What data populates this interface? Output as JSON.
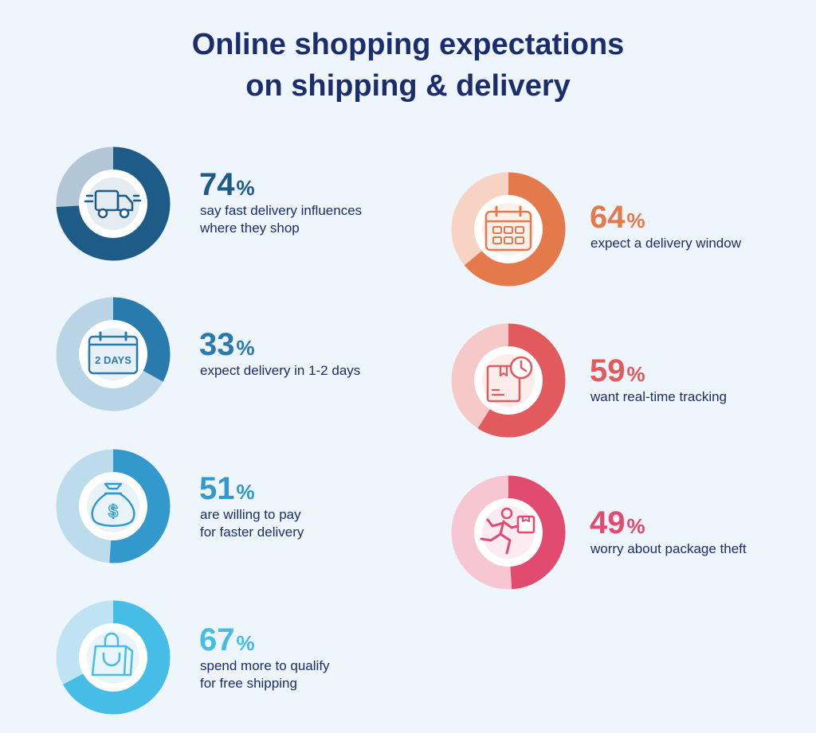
{
  "title_line1": "Online shopping expectations",
  "title_line2": "on shipping & delivery",
  "chart_data": {
    "type": "pie",
    "title": "Online shopping expectations on shipping & delivery",
    "unit": "%",
    "items": [
      {
        "value": 74,
        "label": "%",
        "line1": "say fast delivery influences",
        "line2": "where they shop",
        "icon": "truck-icon",
        "color": "#1e5b86",
        "track": "#b3c6d6"
      },
      {
        "value": 33,
        "label": "%",
        "line1": "expect delivery in 1-2 days",
        "line2": "",
        "icon": "calendar-2-days-icon",
        "color": "#2a7bad",
        "track": "#b9d4e5"
      },
      {
        "value": 51,
        "label": "%",
        "line1": "are willing to pay",
        "line2": "for faster delivery",
        "icon": "money-bag-icon",
        "color": "#3399cc",
        "track": "#bcdcec"
      },
      {
        "value": 67,
        "label": "%",
        "line1": "spend more to qualify",
        "line2": "for free shipping",
        "icon": "shopping-bag-icon",
        "color": "#45bde6",
        "track": "#bfe3f2"
      },
      {
        "value": 64,
        "label": "%",
        "line1": "expect a delivery window",
        "line2": "",
        "icon": "calendar-icon",
        "color": "#e47a4c",
        "track": "#f6d3c3"
      },
      {
        "value": 59,
        "label": "%",
        "line1": "want real-time tracking",
        "line2": "",
        "icon": "package-clock-icon",
        "color": "#e05a5e",
        "track": "#f6c9c9"
      },
      {
        "value": 49,
        "label": "%",
        "line1": "worry about package theft",
        "line2": "",
        "icon": "thief-running-icon",
        "color": "#e14b70",
        "track": "#f6c6d3"
      }
    ],
    "icon_text": "2 DAYS"
  }
}
